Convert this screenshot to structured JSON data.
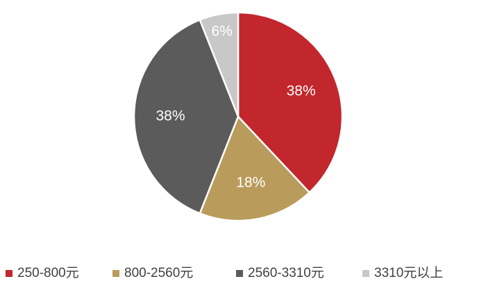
{
  "chart_data": {
    "type": "pie",
    "categories": [
      "250-800元",
      "800-2560元",
      "2560-3310元",
      "3310元以上"
    ],
    "values": [
      38,
      18,
      38,
      6
    ],
    "value_labels": [
      "38%",
      "18%",
      "38%",
      "6%"
    ],
    "colors": [
      "#c1272d",
      "#b99b5c",
      "#5b5b5b",
      "#c8c8c8"
    ],
    "legend": "bottom"
  }
}
